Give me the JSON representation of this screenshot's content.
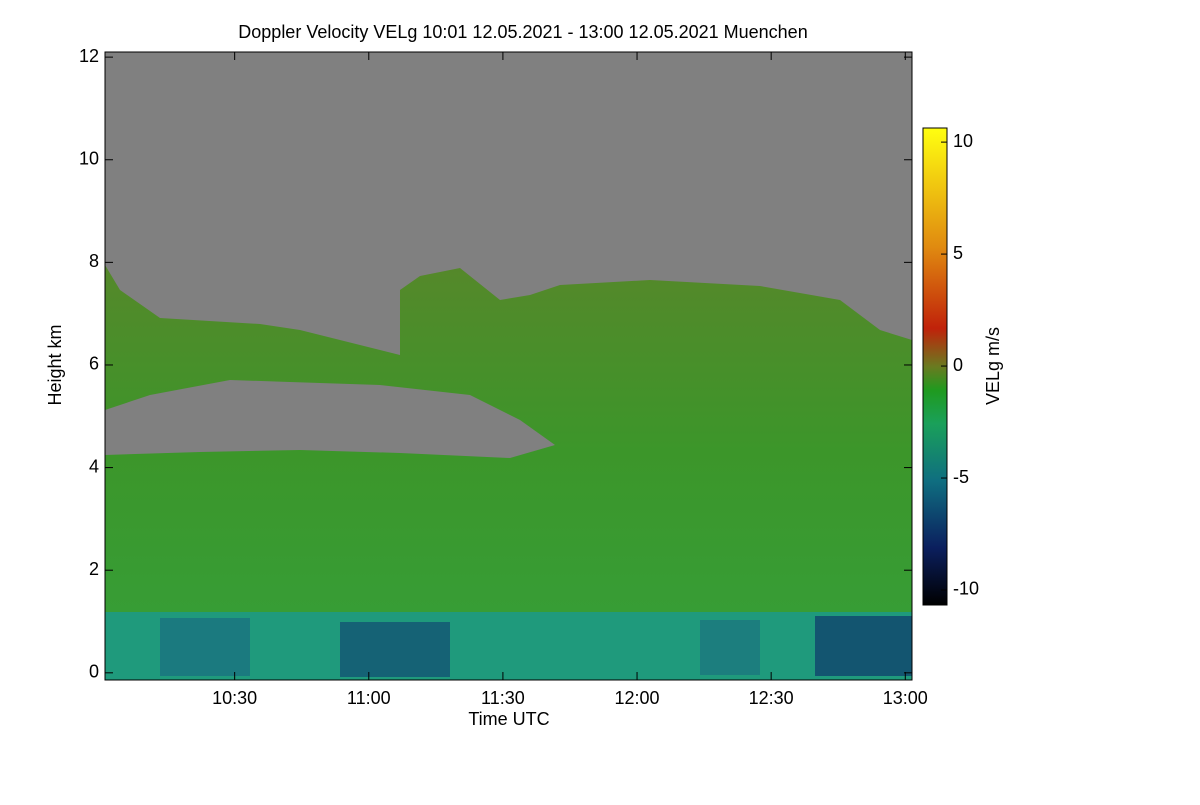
{
  "chart_data": {
    "type": "heatmap",
    "title": "Doppler Velocity VELg   10:01 12.05.2021 - 13:00 12.05.2021 Muenchen",
    "xlabel": "Time UTC",
    "ylabel": "Height km",
    "xlim": [
      601,
      781.5
    ],
    "xticks": [
      {
        "value": 630,
        "label": "10:30"
      },
      {
        "value": 660,
        "label": "11:00"
      },
      {
        "value": 690,
        "label": "11:30"
      },
      {
        "value": 720,
        "label": "12:00"
      },
      {
        "value": 750,
        "label": "12:30"
      },
      {
        "value": 780,
        "label": "13:00"
      }
    ],
    "ylim": [
      -0.14,
      12.1
    ],
    "yticks": [
      0,
      2,
      4,
      6,
      8,
      10,
      12
    ],
    "colorbar": {
      "label": "VELg m/s",
      "lim": [
        -10.67,
        10.63
      ],
      "ticks": [
        -10,
        -5,
        0,
        5,
        10
      ]
    }
  }
}
